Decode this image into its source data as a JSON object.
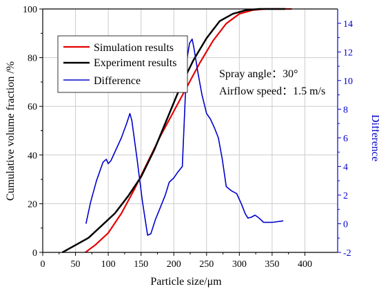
{
  "chart_data": {
    "type": "line",
    "xlabel": "Particle size/μm",
    "ylabel": "Cumulative volume fraction /%",
    "y2label": "Difference",
    "xlim": [
      0,
      450
    ],
    "ylim": [
      0,
      100
    ],
    "y2lim": [
      -2,
      15
    ],
    "xticks": [
      0,
      50,
      100,
      150,
      200,
      250,
      300,
      350,
      400
    ],
    "xtick_labels": [
      "0",
      "50",
      "100",
      "150",
      "200",
      "250",
      "300",
      "350",
      "400"
    ],
    "yticks": [
      0,
      20,
      40,
      60,
      80,
      100
    ],
    "ytick_labels": [
      "0",
      "20",
      "40",
      "60",
      "80",
      "100"
    ],
    "y2ticks": [
      -2,
      0,
      2,
      4,
      6,
      8,
      10,
      12,
      14
    ],
    "y2tick_labels": [
      "-2",
      "0",
      "2",
      "4",
      "6",
      "8",
      "10",
      "12",
      "14"
    ],
    "grid": true,
    "legend_position": "top-left",
    "annotations": [
      "Spray angle：30°",
      "Airflow speed：1.5 m/s"
    ],
    "series": [
      {
        "name": "Simulation results",
        "color": "#e60000",
        "axis": "left",
        "x": [
          65,
          80,
          100,
          120,
          140,
          160,
          180,
          200,
          220,
          240,
          260,
          280,
          300,
          320,
          340,
          360,
          380
        ],
        "y": [
          0,
          3,
          8,
          16,
          26,
          37,
          48,
          58,
          68,
          78,
          87,
          94,
          98,
          99.5,
          100,
          100,
          100
        ]
      },
      {
        "name": "Experiment results",
        "color": "#000000",
        "axis": "left",
        "x": [
          30,
          50,
          70,
          90,
          110,
          130,
          150,
          170,
          190,
          210,
          230,
          250,
          270,
          290,
          310,
          330,
          350,
          370
        ],
        "y": [
          0,
          3,
          6,
          11,
          16,
          23,
          31,
          42,
          55,
          68,
          79,
          88,
          95,
          98,
          99.5,
          100,
          100,
          100
        ]
      },
      {
        "name": "Difference",
        "color": "#0000cc",
        "axis": "right",
        "x": [
          66,
          73,
          82,
          92,
          97,
          100,
          104,
          112,
          120,
          128,
          133,
          136,
          144,
          152,
          160,
          165,
          172,
          180,
          187,
          193,
          200,
          206,
          213,
          220,
          224,
          228,
          231,
          237,
          243,
          250,
          256,
          262,
          268,
          274,
          280,
          288,
          296,
          303,
          309,
          313,
          318,
          324,
          330,
          337,
          351,
          367
        ],
        "y": [
          0,
          1.5,
          3,
          4.3,
          4.5,
          4.2,
          4.4,
          5.2,
          6,
          7,
          7.7,
          7.2,
          4.5,
          1.6,
          -0.8,
          -0.7,
          0.3,
          1.2,
          2,
          2.9,
          3.2,
          3.6,
          4,
          11.5,
          12.6,
          12.9,
          12.2,
          10.5,
          9,
          7.7,
          7.3,
          6.7,
          6,
          4.5,
          2.6,
          2.3,
          2.1,
          1.4,
          0.7,
          0.4,
          0.45,
          0.6,
          0.4,
          0.1,
          0.1,
          0.2
        ]
      }
    ]
  }
}
